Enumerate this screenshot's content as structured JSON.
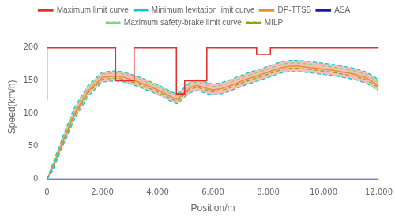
{
  "chart_data": {
    "type": "line",
    "xlabel": "Position/m",
    "ylabel": "Speed(km/h)",
    "xlim": [
      0,
      12000
    ],
    "ylim": [
      0,
      220
    ],
    "xticks": [
      0,
      {
        "value": 2000,
        "label": "2,000"
      },
      {
        "value": 4000,
        "label": "4,000"
      },
      {
        "value": 6000,
        "label": "6,000"
      },
      {
        "value": 8000,
        "label": "8,000"
      },
      {
        "value": 10000,
        "label": "10,000"
      },
      {
        "value": 12000,
        "label": "12,000"
      }
    ],
    "yticks": [
      0,
      50,
      100,
      150,
      200
    ],
    "grid": false,
    "legend": "top",
    "x": [
      0,
      200,
      600,
      1000,
      1500,
      2000,
      2500,
      2800,
      3000,
      3300,
      3600,
      3900,
      4200,
      4500,
      4700,
      4800,
      5000,
      5200,
      5400,
      5600,
      5800,
      6000,
      6300,
      6600,
      6900,
      7200,
      7500,
      7800,
      8000,
      8200,
      8500,
      8800,
      9100,
      9500,
      9900,
      10300,
      10700,
      11100,
      11500,
      11800,
      12000
    ],
    "series": [
      {
        "type": "area",
        "color": "#f8b0b0",
        "values": [
          0,
          23,
          68,
          110,
          144,
          163,
          165,
          163,
          160,
          156,
          151,
          146,
          140,
          133,
          130,
          133,
          141,
          149,
          152,
          150,
          147,
          145,
          147,
          151,
          156,
          161,
          165,
          169,
          172,
          175,
          179,
          181,
          181,
          179,
          177,
          175,
          172,
          169,
          164,
          157,
          151
        ],
        "lower": [
          0,
          13,
          53,
          92,
          127,
          148,
          150,
          148,
          145,
          141,
          136,
          131,
          125,
          118,
          115,
          118,
          126,
          132,
          135,
          133,
          130,
          128,
          130,
          134,
          139,
          144,
          148,
          152,
          155,
          158,
          162,
          164,
          164,
          162,
          160,
          158,
          155,
          152,
          147,
          140,
          134
        ]
      },
      {
        "name": "Maximum limit curve",
        "color": "#e03030",
        "line_style": "solid",
        "x": [
          0,
          0,
          2480,
          2480,
          3150,
          3150,
          4680,
          4680,
          4980,
          4980,
          5780,
          5780,
          7580,
          7580,
          8080,
          8080,
          12000,
          12000
        ],
        "values": [
          120,
          200,
          200,
          150,
          150,
          200,
          200,
          130,
          130,
          150,
          150,
          200,
          200,
          190,
          190,
          200,
          200,
          200
        ]
      },
      {
        "name": "Minimum levitation limit curve",
        "color": "#00cccc",
        "line_style": "dashed",
        "values": [
          0,
          23,
          68,
          110,
          144,
          163,
          165,
          163,
          160,
          156,
          151,
          146,
          140,
          133,
          130,
          133,
          141,
          149,
          152,
          150,
          147,
          145,
          147,
          151,
          156,
          161,
          165,
          169,
          172,
          175,
          179,
          181,
          181,
          179,
          177,
          175,
          172,
          169,
          164,
          157,
          151
        ],
        "lower": [
          0,
          13,
          53,
          92,
          127,
          148,
          150,
          148,
          145,
          141,
          136,
          131,
          125,
          118,
          115,
          118,
          126,
          132,
          135,
          133,
          130,
          128,
          130,
          134,
          139,
          144,
          148,
          152,
          155,
          158,
          162,
          164,
          164,
          162,
          160,
          158,
          155,
          152,
          147,
          140,
          134
        ]
      },
      {
        "name": "DP-TTSB",
        "color": "#e89030",
        "line_style": "solid",
        "values": [
          0,
          18,
          60,
          100,
          135,
          155,
          157,
          155,
          152,
          148,
          143,
          138,
          132,
          125,
          122,
          125,
          133,
          140,
          143,
          141,
          138,
          136,
          138,
          142,
          147,
          152,
          156,
          160,
          163,
          166,
          170,
          172,
          172,
          170,
          168,
          166,
          163,
          160,
          155,
          148,
          142
        ]
      },
      {
        "name": "ASA",
        "color": "#1a1aaa",
        "line_style": "solid",
        "x": [
          0,
          12000
        ],
        "values": [
          0,
          0
        ]
      },
      {
        "name": "Maximum safety-brake limit curve",
        "color": "#70dd70",
        "line_style": "dashed",
        "values": [
          0,
          20,
          64,
          105,
          140,
          160,
          162,
          160,
          157,
          153,
          148,
          143,
          137,
          130,
          127,
          130,
          138,
          145,
          148,
          146,
          143,
          141,
          143,
          147,
          152,
          157,
          161,
          165,
          168,
          171,
          175,
          177,
          177,
          175,
          173,
          171,
          168,
          165,
          160,
          153,
          147
        ]
      },
      {
        "name": "MILP",
        "color": "#88aa00",
        "line_style": "dashed",
        "values": [
          0,
          17,
          57,
          97,
          132,
          152,
          154,
          152,
          149,
          145,
          140,
          135,
          129,
          122,
          119,
          122,
          130,
          137,
          140,
          138,
          135,
          133,
          135,
          139,
          144,
          149,
          153,
          157,
          160,
          163,
          167,
          169,
          169,
          167,
          165,
          163,
          160,
          157,
          152,
          145,
          139
        ]
      }
    ]
  }
}
